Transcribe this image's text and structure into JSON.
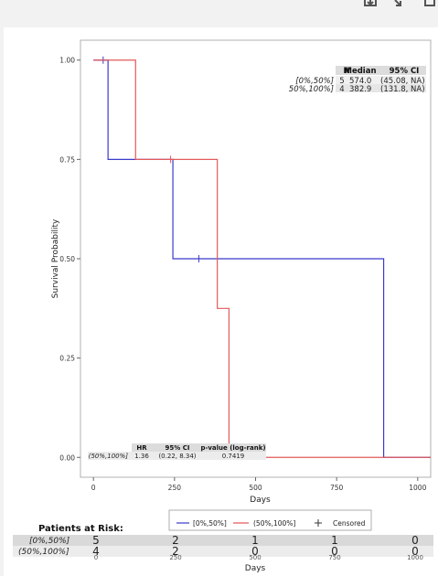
{
  "toolbar": {
    "icons": [
      "download-icon",
      "collapse-icon",
      "expand-icon"
    ]
  },
  "chart_data": {
    "type": "line",
    "xlabel": "Days",
    "ylabel": "Survival Probability",
    "xlim": [
      -40,
      1040
    ],
    "ylim": [
      -0.05,
      1.05
    ],
    "x_ticks": [
      0,
      250,
      500,
      750,
      1000
    ],
    "x_tick_labels": [
      "0",
      "250",
      "500",
      "750",
      "1000"
    ],
    "y_ticks": [
      0,
      0.25,
      0.5,
      0.75,
      1.0
    ],
    "y_tick_labels": [
      "0.00",
      "0.25",
      "0.50",
      "0.75",
      "1.00"
    ],
    "grid": false,
    "legend_position": "bottom",
    "series": [
      {
        "name": "[0%,50%]",
        "color": "#3a3acc",
        "steps": [
          [
            0,
            1.0
          ],
          [
            45,
            0.75
          ],
          [
            245,
            0.5
          ],
          [
            895,
            0.0
          ]
        ],
        "end_x": 1040,
        "censored": [
          [
            30,
            1.0
          ],
          [
            325,
            0.5
          ]
        ]
      },
      {
        "name": "(50%,100%]",
        "color": "#e35a5a",
        "steps": [
          [
            0,
            1.0
          ],
          [
            130,
            0.75
          ],
          [
            382,
            0.375
          ],
          [
            418,
            0.0
          ]
        ],
        "end_x": 1040,
        "censored": [
          [
            238,
            0.75
          ]
        ]
      }
    ],
    "median_table": {
      "headers": [
        "N",
        "Median",
        "95% CI"
      ],
      "rows": [
        {
          "label": "[0%,50%]",
          "n": "5",
          "median": "574.0",
          "ci": "(45.08, NA)"
        },
        {
          "label": "50%,100%]",
          "n": "4",
          "median": "382.9",
          "ci": "(131.8, NA)"
        }
      ]
    },
    "hr_table": {
      "headers": [
        "HR",
        "95% CI",
        "p-value (log-rank)"
      ],
      "row": {
        "label": "(50%,100%]",
        "hr": "1.36",
        "ci": "(0.22, 8.34)",
        "p": "0.7419"
      }
    },
    "legend": {
      "items": [
        "[0%,50%]",
        "(50%,100%]"
      ],
      "censored_label": "Censored"
    },
    "risk_table": {
      "title": "Patients at Risk:",
      "xlabel": "Days",
      "x_ticks": [
        0,
        250,
        500,
        750,
        1000
      ],
      "tick_labels": [
        "0",
        "250",
        "500",
        "750",
        "1000"
      ],
      "rows": [
        {
          "label": "[0%,50%]",
          "values": [
            "5",
            "2",
            "1",
            "1",
            "0"
          ]
        },
        {
          "label": "(50%,100%]",
          "values": [
            "4",
            "2",
            "0",
            "0",
            "0"
          ]
        }
      ]
    }
  }
}
